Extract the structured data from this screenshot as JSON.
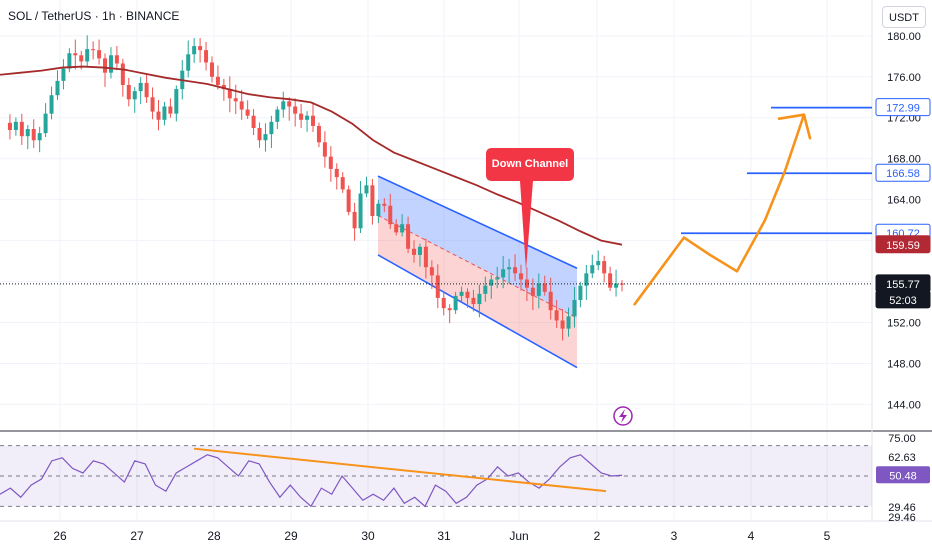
{
  "header": {
    "title": "SOL / TetherUS · 1h · BINANCE",
    "currency": "USDT"
  },
  "annotations": {
    "channel_label": "Down Channel"
  },
  "colors": {
    "up": "#26a69a",
    "down": "#ef5350",
    "ma": "#a52a2a",
    "channel_line": "#2962ff",
    "projection": "#f7931a",
    "level_line": "#2962ff",
    "rsi": "#7e57c2",
    "rsi_trend": "#f7931a"
  },
  "chart_data": [
    {
      "type": "line",
      "title": "",
      "xlabel": "",
      "ylabel": "",
      "x_tick_labels": [
        "26",
        "27",
        "28",
        "29",
        "30",
        "31",
        "Jun",
        "2",
        "3",
        "4",
        "5"
      ],
      "y_tick_labels": [
        "180.00",
        "176.00",
        "172.00",
        "168.00",
        "164.00",
        "152.00",
        "148.00",
        "144.00"
      ],
      "ylim": [
        141.5,
        183.5
      ],
      "series": [
        {
          "kind": "price",
          "values": [
            171.5,
            170.8,
            171.6,
            170.2,
            170.9,
            169.8,
            170.5,
            172.4,
            174.2,
            175.6,
            176.8,
            178.3,
            178.1,
            177.5,
            178.7,
            178.6,
            177.8,
            176.4,
            178.1,
            177.3,
            175.2,
            173.8,
            174.6,
            175.4,
            174.0,
            172.6,
            171.8,
            173.1,
            172.4,
            174.8,
            176.6,
            178.2,
            179.0,
            178.6,
            177.4,
            176.0,
            175.2,
            174.8,
            173.9,
            173.6,
            172.8,
            172.2,
            171.0,
            169.8,
            170.4,
            171.6,
            172.8,
            173.6,
            173.1,
            172.4,
            171.8,
            172.2,
            171.2,
            169.6,
            168.2,
            167.0,
            166.2,
            165.0,
            162.8,
            161.2,
            164.6,
            165.4,
            162.4,
            163.6,
            163.4,
            161.6,
            160.8,
            161.6,
            159.2,
            158.6,
            159.4,
            157.4,
            156.6,
            154.4,
            153.4,
            153.2,
            154.6,
            155.0,
            154.4,
            153.8,
            154.8,
            155.6,
            156.2,
            156.4,
            157.2,
            157.4,
            156.8,
            156.2,
            155.4,
            154.6,
            155.8,
            155.0,
            153.2,
            152.2,
            151.4,
            152.6,
            154.2,
            155.6,
            156.8,
            157.6,
            158.0,
            156.8,
            155.4,
            155.8,
            155.77
          ]
        },
        {
          "kind": "moving_average",
          "values": [
            176.2,
            176.4,
            176.6,
            176.9,
            177.0,
            176.9,
            176.7,
            176.3,
            175.9,
            175.6,
            175.3,
            174.8,
            174.3,
            174.0,
            173.8,
            173.5,
            172.6,
            171.4,
            169.8,
            168.6,
            167.8,
            167.0,
            166.2,
            165.4,
            164.5,
            163.7,
            162.8,
            161.9,
            160.9,
            160.0,
            159.6
          ]
        },
        {
          "kind": "channel",
          "upper_start": 166.3,
          "upper_end": 157.3,
          "lower_start": 158.6,
          "lower_end": 147.6
        },
        {
          "kind": "projection",
          "values": [
            153.7,
            157.0,
            160.3,
            158.6,
            157.0,
            162.0,
            166.8,
            172.3,
            170.0
          ]
        }
      ],
      "levels": [
        {
          "label": "172.99",
          "value": 172.99,
          "style": "blue"
        },
        {
          "label": "166.58",
          "value": 166.58,
          "style": "blue"
        },
        {
          "label": "160.72",
          "value": 160.72,
          "style": "blue"
        },
        {
          "label": "159.59",
          "value": 159.59,
          "style": "red"
        },
        {
          "label": "155.77",
          "value": 155.77,
          "style": "dark"
        }
      ],
      "countdown": "52:03"
    },
    {
      "type": "line",
      "title": "",
      "ylim": [
        21,
        79
      ],
      "y_tick_labels": [
        "75.00",
        "62.63",
        "29.46",
        "29.46"
      ],
      "current_label": "50.48",
      "current_value": 50.48,
      "bands": [
        70,
        50,
        30
      ],
      "series": [
        {
          "kind": "rsi",
          "values": [
            38,
            42,
            36,
            44,
            48,
            60,
            62,
            55,
            52,
            60,
            58,
            52,
            46,
            60,
            58,
            44,
            40,
            52,
            56,
            60,
            64,
            62,
            56,
            50,
            60,
            58,
            46,
            36,
            44,
            36,
            30,
            42,
            38,
            50,
            42,
            34,
            38,
            34,
            42,
            32,
            36,
            30,
            44,
            40,
            32,
            36,
            44,
            48,
            56,
            50,
            52,
            46,
            42,
            48,
            56,
            62,
            64,
            58,
            52,
            50,
            50.48
          ]
        },
        {
          "kind": "trendline",
          "start": 68,
          "end": 40
        }
      ]
    }
  ]
}
